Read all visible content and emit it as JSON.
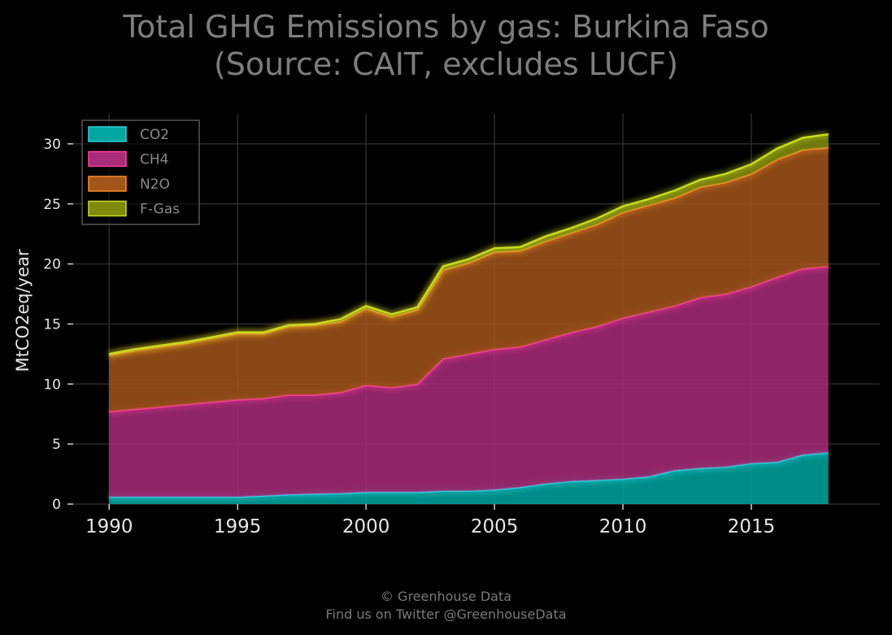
{
  "chart_data": {
    "type": "area",
    "stacked": true,
    "title_line1": "Total GHG Emissions by gas: Burkina Faso",
    "title_line2": "(Source: CAIT, excludes LUCF)",
    "xlabel": "",
    "ylabel": "MtCO2eq/year",
    "xlim": [
      1988.6,
      2020.0
    ],
    "ylim": [
      0,
      32.5
    ],
    "xticks": [
      1990,
      1995,
      2000,
      2005,
      2010,
      2015
    ],
    "yticks": [
      0,
      5,
      10,
      15,
      20,
      25,
      30
    ],
    "grid": true,
    "legend_position": "top-left",
    "x": [
      1990,
      1991,
      1992,
      1993,
      1994,
      1995,
      1996,
      1997,
      1998,
      1999,
      2000,
      2001,
      2002,
      2003,
      2004,
      2005,
      2006,
      2007,
      2008,
      2009,
      2010,
      2011,
      2012,
      2013,
      2014,
      2015,
      2016,
      2017,
      2018
    ],
    "series": [
      {
        "name": "CO2",
        "color": "#00a6a0",
        "edge": "#2fd0e0",
        "values": [
          0.6,
          0.6,
          0.6,
          0.6,
          0.6,
          0.6,
          0.7,
          0.8,
          0.85,
          0.9,
          1.0,
          1.0,
          1.0,
          1.1,
          1.1,
          1.2,
          1.4,
          1.7,
          1.9,
          2.0,
          2.1,
          2.3,
          2.8,
          3.0,
          3.1,
          3.4,
          3.5,
          4.1,
          4.3
        ]
      },
      {
        "name": "CH4",
        "color": "#a82c78",
        "edge": "#ff3f9e",
        "values": [
          7.1,
          7.3,
          7.5,
          7.7,
          7.9,
          8.1,
          8.1,
          8.3,
          8.25,
          8.4,
          8.9,
          8.7,
          9.0,
          11.0,
          11.4,
          11.7,
          11.7,
          12.0,
          12.4,
          12.8,
          13.4,
          13.7,
          13.7,
          14.2,
          14.4,
          14.7,
          15.4,
          15.5,
          15.5
        ]
      },
      {
        "name": "N2O",
        "color": "#a2551a",
        "edge": "#ff8c2a",
        "values": [
          4.7,
          4.9,
          5.0,
          5.1,
          5.3,
          5.5,
          5.4,
          5.7,
          5.8,
          5.9,
          6.4,
          5.9,
          6.2,
          7.4,
          7.6,
          8.1,
          8.0,
          8.2,
          8.3,
          8.5,
          8.8,
          8.9,
          9.0,
          9.2,
          9.3,
          9.4,
          9.8,
          9.9,
          9.9
        ]
      },
      {
        "name": "F-Gas",
        "color": "#7d8a0e",
        "edge": "#c8dc1e",
        "values": [
          0.1,
          0.1,
          0.1,
          0.1,
          0.1,
          0.1,
          0.1,
          0.1,
          0.1,
          0.2,
          0.2,
          0.2,
          0.2,
          0.3,
          0.3,
          0.3,
          0.3,
          0.4,
          0.4,
          0.5,
          0.5,
          0.5,
          0.6,
          0.6,
          0.7,
          0.8,
          0.9,
          1.0,
          1.1
        ]
      }
    ]
  },
  "footer": {
    "line1": "© Greenhouse Data",
    "line2": "Find us on Twitter @GreenhouseData"
  }
}
